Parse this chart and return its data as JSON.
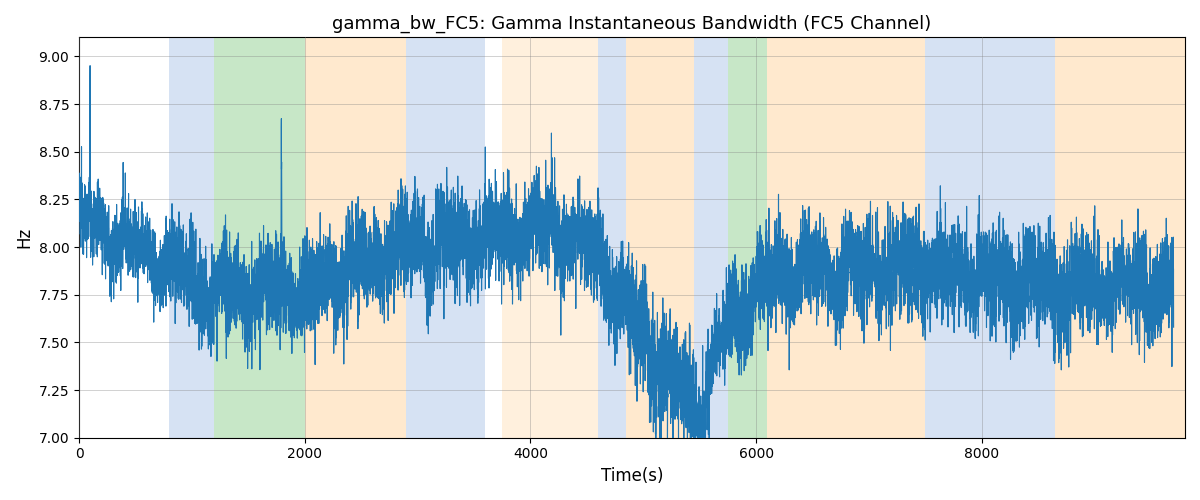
{
  "title": "gamma_bw_FC5: Gamma Instantaneous Bandwidth (FC5 Channel)",
  "xlabel": "Time(s)",
  "ylabel": "Hz",
  "ylim": [
    7.0,
    9.1
  ],
  "yticks": [
    7.0,
    7.25,
    7.5,
    7.75,
    8.0,
    8.25,
    8.5,
    8.75,
    9.0
  ],
  "xlim": [
    0,
    9800
  ],
  "xticks": [
    0,
    2000,
    4000,
    6000,
    8000
  ],
  "line_color": "#1f77b4",
  "line_width": 0.8,
  "bg_color": "#ffffff",
  "bands": [
    {
      "xmin": 800,
      "xmax": 1200,
      "color": "#aec6e8",
      "alpha": 0.5
    },
    {
      "xmin": 1200,
      "xmax": 2000,
      "color": "#90d090",
      "alpha": 0.5
    },
    {
      "xmin": 2000,
      "xmax": 2900,
      "color": "#ffd59e",
      "alpha": 0.5
    },
    {
      "xmin": 2900,
      "xmax": 3600,
      "color": "#aec6e8",
      "alpha": 0.5
    },
    {
      "xmin": 3600,
      "xmax": 3750,
      "color": "#ffffff",
      "alpha": 0.0
    },
    {
      "xmin": 3750,
      "xmax": 4600,
      "color": "#ffd59e",
      "alpha": 0.35
    },
    {
      "xmin": 4600,
      "xmax": 4850,
      "color": "#aec6e8",
      "alpha": 0.5
    },
    {
      "xmin": 4850,
      "xmax": 5450,
      "color": "#ffd59e",
      "alpha": 0.5
    },
    {
      "xmin": 5450,
      "xmax": 5750,
      "color": "#aec6e8",
      "alpha": 0.5
    },
    {
      "xmin": 5750,
      "xmax": 6100,
      "color": "#90d090",
      "alpha": 0.5
    },
    {
      "xmin": 6100,
      "xmax": 7500,
      "color": "#ffd59e",
      "alpha": 0.5
    },
    {
      "xmin": 7500,
      "xmax": 8650,
      "color": "#aec6e8",
      "alpha": 0.5
    },
    {
      "xmin": 8650,
      "xmax": 9800,
      "color": "#ffd59e",
      "alpha": 0.5
    }
  ],
  "figsize": [
    12.0,
    5.0
  ],
  "dpi": 100,
  "seed": 12345
}
